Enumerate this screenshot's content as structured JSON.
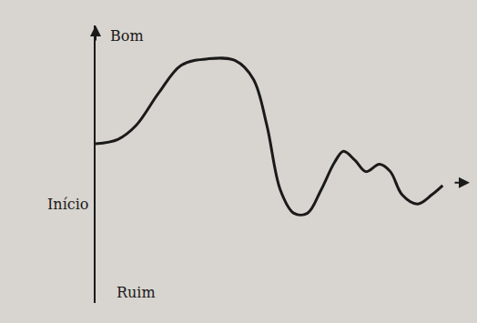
{
  "chart_data": {
    "type": "line",
    "x": [
      0,
      0.25,
      0.45,
      0.7,
      0.95,
      1.25,
      1.55,
      1.75,
      1.9,
      2.05,
      2.2,
      2.35,
      2.5,
      2.65,
      2.75,
      2.88,
      3.0,
      3.15,
      3.27,
      3.4,
      3.57,
      3.73,
      3.85
    ],
    "values": [
      0.42,
      0.47,
      0.62,
      0.97,
      1.27,
      1.34,
      1.32,
      1.12,
      0.62,
      -0.08,
      -0.33,
      -0.33,
      -0.08,
      0.22,
      0.34,
      0.24,
      0.12,
      0.2,
      0.12,
      -0.13,
      -0.23,
      -0.13,
      -0.03
    ],
    "xlim": [
      0,
      4.15
    ],
    "ylim": [
      -1.3,
      1.7
    ],
    "tick_labels": false,
    "grid": false,
    "color": "#1a1a1a",
    "labels": {
      "top": "Bom",
      "bottom": "Ruim",
      "left": "Início"
    }
  }
}
